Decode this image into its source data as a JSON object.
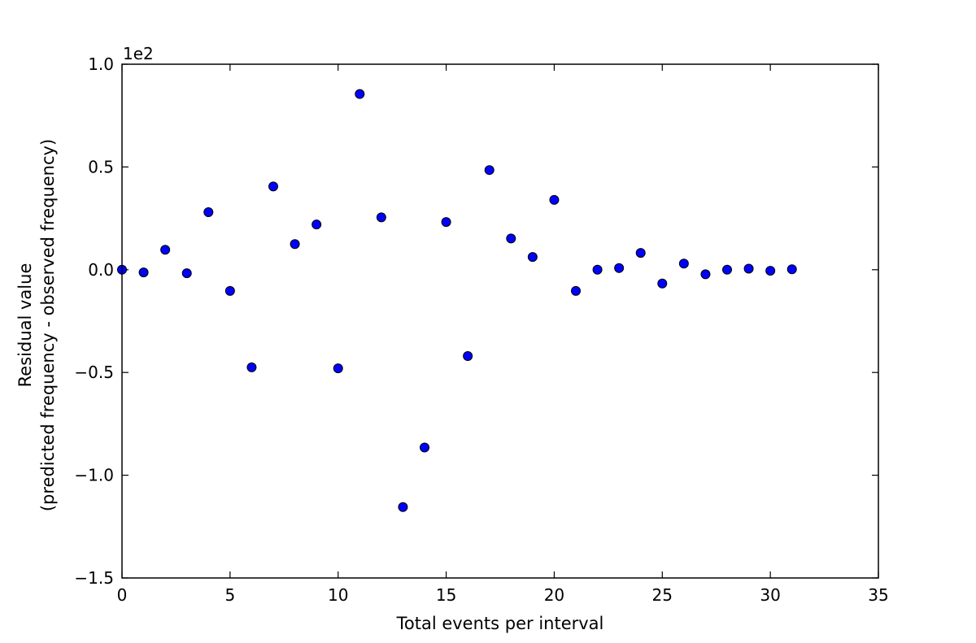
{
  "chart_data": {
    "type": "scatter",
    "title": "",
    "xlabel": "Total events per interval",
    "ylabel_line1": "Residual value",
    "ylabel_line2": "(predicted frequency - observed frequency)",
    "offset_text": "1e2",
    "xlim": [
      0,
      35
    ],
    "ylim": [
      -1.5,
      1.0
    ],
    "xticks": [
      0,
      5,
      10,
      15,
      20,
      25,
      30,
      35
    ],
    "xtick_labels": [
      "0",
      "5",
      "10",
      "15",
      "20",
      "25",
      "30",
      "35"
    ],
    "yticks": [
      1.0,
      0.5,
      0.0,
      -0.5,
      -1.0,
      -1.5
    ],
    "ytick_labels": [
      "1.0",
      "0.5",
      "0.0",
      "−0.5",
      "−1.0",
      "−1.5"
    ],
    "grid": false,
    "marker_color": "#0000ff",
    "marker_edge_color": "#000000",
    "series": [
      {
        "x": [
          0,
          1,
          2,
          3,
          4,
          5,
          6,
          7,
          8,
          9,
          10,
          11,
          12,
          13,
          14,
          15,
          16,
          17,
          18,
          19,
          20,
          21,
          22,
          23,
          24,
          25,
          26,
          27,
          28,
          29,
          30,
          31
        ],
        "y": [
          0.0,
          -0.013,
          0.097,
          -0.017,
          0.28,
          -0.103,
          -0.475,
          0.405,
          0.125,
          0.22,
          -0.48,
          0.855,
          0.255,
          -1.155,
          -0.865,
          0.232,
          -0.42,
          0.485,
          0.152,
          0.062,
          0.34,
          -0.103,
          0.0,
          0.008,
          0.082,
          -0.067,
          0.03,
          -0.022,
          0.0,
          0.005,
          -0.005,
          0.002
        ]
      }
    ]
  }
}
